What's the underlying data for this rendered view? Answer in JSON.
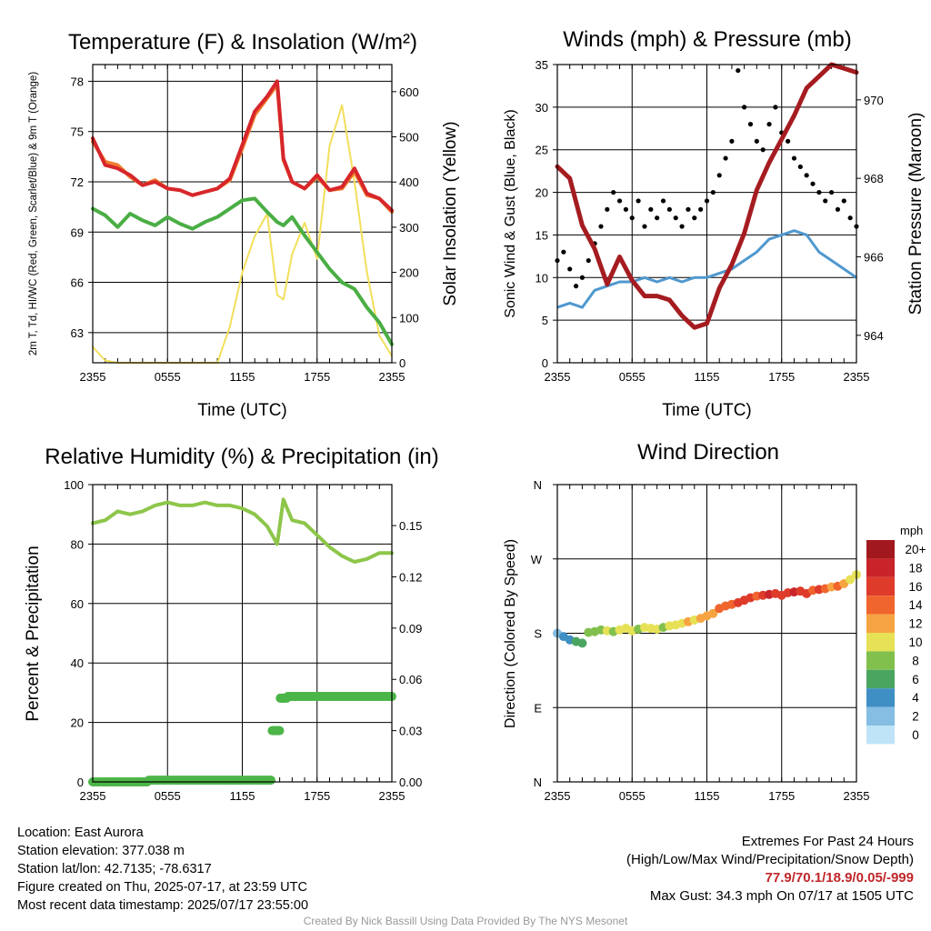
{
  "info": {
    "location": "Location: East Aurora",
    "elevation": "Station elevation: 377.038 m",
    "latlon": "Station lat/lon: 42.7135; -78.6317",
    "created": "Figure created on Thu, 2025-07-17, at 23:59 UTC",
    "recent": "Most recent data timestamp: 2025/07/17 23:55:00"
  },
  "extremes": {
    "title": "Extremes For Past 24 Hours",
    "subtitle": "(High/Low/Max Wind/Precipitation/Snow Depth)",
    "values": "77.9/70.1/18.9/0.05/-999",
    "gust": "Max Gust: 34.3 mph On 07/17 at 1505 UTC"
  },
  "credit": "Created By Nick Bassill Using Data Provided By The NYS Mesonet",
  "colors": {
    "temp": "#d7262b",
    "temp9m": "#f07d2e",
    "dew": "#4aae44",
    "solar": "#f2df5c",
    "gust": "#000000",
    "wind": "#4f98cf",
    "pressure": "#a51c20",
    "rh": "#8dc64a",
    "precip": "#4cb548"
  },
  "chart_data": [
    {
      "type": "line",
      "title": "Temperature (F) & Insolation (W/m²)",
      "xlabel": "Time (UTC)",
      "ylabel": "2m T, Td, HI/WC (Red, Green, Scarlet/Blue) & 9m T (Orange)",
      "y2label": "Solar Insolation (Yellow)",
      "x_ticks": [
        "2355",
        "0555",
        "1155",
        "1755",
        "2355"
      ],
      "ylim": [
        61.2,
        79.0
      ],
      "y_ticks": [
        63,
        66,
        69,
        72,
        75,
        78
      ],
      "y2lim": [
        0,
        660
      ],
      "y2_ticks": [
        0,
        100,
        200,
        300,
        400,
        500,
        600
      ],
      "x_hours": [
        0,
        1,
        2,
        3,
        4,
        5,
        6,
        7,
        8,
        9,
        10,
        11,
        12,
        13,
        14,
        14.8,
        15.3,
        16,
        17,
        18,
        19,
        20,
        21,
        22,
        23,
        24
      ],
      "series": [
        {
          "name": "2m T",
          "axis": "left",
          "color_key": "temp",
          "values": [
            74.6,
            73.0,
            72.8,
            72.4,
            71.8,
            72.0,
            71.6,
            71.5,
            71.2,
            71.4,
            71.6,
            72.2,
            74.2,
            76.2,
            77.1,
            78.0,
            73.4,
            72.0,
            71.6,
            72.4,
            71.5,
            71.7,
            72.8,
            71.3,
            71.0,
            70.3
          ]
        },
        {
          "name": "9m T",
          "axis": "left",
          "color_key": "temp9m",
          "values": [
            74.4,
            73.2,
            73.0,
            72.3,
            71.8,
            72.1,
            71.6,
            71.5,
            71.2,
            71.4,
            71.6,
            72.1,
            74.0,
            76.0,
            77.0,
            77.8,
            73.3,
            72.0,
            71.6,
            72.3,
            71.5,
            71.6,
            72.6,
            71.2,
            71.0,
            70.2
          ]
        },
        {
          "name": "2m Td",
          "axis": "left",
          "color_key": "dew",
          "values": [
            70.4,
            70.0,
            69.3,
            70.1,
            69.7,
            69.4,
            69.9,
            69.5,
            69.2,
            69.6,
            69.9,
            70.4,
            70.9,
            71.0,
            70.2,
            69.6,
            69.4,
            69.9,
            68.8,
            67.8,
            66.8,
            66.0,
            65.6,
            64.5,
            63.6,
            62.3
          ]
        },
        {
          "name": "Solar",
          "axis": "right",
          "color_key": "solar",
          "values": [
            35,
            5,
            0,
            0,
            0,
            0,
            0,
            0,
            0,
            0,
            0,
            80,
            200,
            280,
            330,
            150,
            140,
            240,
            310,
            230,
            480,
            570,
            400,
            200,
            60,
            15
          ]
        }
      ]
    },
    {
      "type": "line",
      "title": "Winds (mph) & Pressure (mb)",
      "xlabel": "Time (UTC)",
      "ylabel": "Sonic Wind & Gust (Blue, Black)",
      "y2label": "Station Pressure (Maroon)",
      "x_ticks": [
        "2355",
        "0555",
        "1155",
        "1755",
        "2355"
      ],
      "ylim": [
        0,
        35
      ],
      "y_ticks": [
        0,
        5,
        10,
        15,
        20,
        25,
        30,
        35
      ],
      "y2lim": [
        963.3,
        970.9
      ],
      "y2_ticks": [
        964,
        966,
        968,
        970
      ],
      "x_hours": [
        0,
        1,
        2,
        3,
        4,
        5,
        6,
        7,
        8,
        9,
        10,
        11,
        12,
        13,
        14,
        15,
        16,
        17,
        18,
        19,
        20,
        21,
        22,
        23,
        24
      ],
      "series": [
        {
          "name": "Sonic Wind",
          "axis": "left",
          "color_key": "wind",
          "values": [
            6.5,
            7,
            6.5,
            8.5,
            9,
            9.5,
            9.5,
            10,
            9.5,
            10,
            9.5,
            10,
            10,
            10.5,
            11,
            12,
            13,
            14.5,
            15,
            15.5,
            15,
            13,
            12,
            11,
            10
          ]
        },
        {
          "name": "Station Pressure",
          "axis": "right",
          "color_key": "pressure",
          "values": [
            968.3,
            968.0,
            966.8,
            966.2,
            965.3,
            966.0,
            965.4,
            965.0,
            965.0,
            964.9,
            964.5,
            964.2,
            964.3,
            965.2,
            965.8,
            966.6,
            967.7,
            968.4,
            969.0,
            969.6,
            970.3,
            970.6,
            970.9,
            970.8,
            970.7
          ]
        }
      ],
      "gust_points": {
        "x_hours": [
          0,
          0.5,
          1,
          1.5,
          2,
          2.5,
          3,
          3.5,
          4,
          4.5,
          5,
          5.5,
          6,
          6.5,
          7,
          7.5,
          8,
          8.5,
          9,
          9.5,
          10,
          10.5,
          11,
          11.5,
          12,
          12.5,
          13,
          13.5,
          14,
          14.5,
          15,
          15.5,
          16,
          16.5,
          17,
          17.5,
          18,
          18.5,
          19,
          19.5,
          20,
          20.5,
          21,
          21.5,
          22,
          22.5,
          23,
          23.5,
          24
        ],
        "values": [
          12,
          13,
          11,
          9,
          10,
          12,
          14,
          16,
          18,
          20,
          19,
          18,
          17,
          19,
          16,
          18,
          17,
          19,
          18,
          17,
          16,
          18,
          17,
          18,
          19,
          20,
          22,
          24,
          26,
          34.3,
          30,
          28,
          26,
          25,
          28,
          30,
          27,
          26,
          24,
          23,
          22,
          21,
          20,
          19,
          20,
          18,
          19,
          17,
          16
        ]
      }
    },
    {
      "type": "line",
      "title": "Relative Humidity (%) & Precipitation (in)",
      "xlabel": "",
      "ylabel": "Percent & Precipitation",
      "x_ticks": [
        "2355",
        "0555",
        "1155",
        "1755",
        "2355"
      ],
      "ylim": [
        0,
        100
      ],
      "y_ticks": [
        0,
        20,
        40,
        60,
        80,
        100
      ],
      "y2lim": [
        0,
        0.174
      ],
      "y2_ticks": [
        "0.00",
        "0.03",
        "0.06",
        "0.09",
        "0.12",
        "0.15"
      ],
      "x_hours": [
        0,
        1,
        2,
        3,
        4,
        5,
        6,
        7,
        8,
        9,
        10,
        11,
        12,
        13,
        14,
        14.8,
        15.3,
        16,
        17,
        18,
        19,
        20,
        21,
        22,
        23,
        24
      ],
      "series": [
        {
          "name": "RH",
          "axis": "left",
          "color_key": "rh",
          "values": [
            87,
            88,
            91,
            90,
            91,
            93,
            94,
            93,
            93,
            94,
            93,
            93,
            92,
            90,
            86,
            80,
            95,
            88,
            87,
            83,
            79,
            76,
            74,
            75,
            77,
            77
          ]
        },
        {
          "name": "Precipitation",
          "axis": "right",
          "color_key": "precip",
          "style": "dots",
          "values": [
            0,
            0,
            0,
            0,
            0,
            0.001,
            0.001,
            0.001,
            0.001,
            0.001,
            0.001,
            0.001,
            0.001,
            0.001,
            0.001,
            0.03,
            0.049,
            0.05,
            0.05,
            0.05,
            0.05,
            0.05,
            0.05,
            0.05,
            0.05,
            0.05
          ]
        }
      ]
    },
    {
      "type": "scatter",
      "title": "Wind Direction",
      "ylabel": "Direction (Colored By Speed)",
      "x_ticks": [
        "2355",
        "0555",
        "1155",
        "1755",
        "2355"
      ],
      "y_categories": [
        "N",
        "E",
        "S",
        "W",
        "N"
      ],
      "ylim": [
        0,
        360
      ],
      "x_hours": [
        0,
        0.5,
        1,
        1.5,
        2,
        2.5,
        3,
        3.5,
        4,
        4.5,
        5,
        5.5,
        6,
        6.5,
        7,
        7.5,
        8,
        8.5,
        9,
        9.5,
        10,
        10.5,
        11,
        11.5,
        12,
        12.5,
        13,
        13.5,
        14,
        14.5,
        15,
        15.5,
        16,
        16.5,
        17,
        17.5,
        18,
        18.5,
        19,
        19.5,
        20,
        20.5,
        21,
        21.5,
        22,
        22.5,
        23,
        23.5,
        24
      ],
      "direction_deg": [
        180,
        176,
        172,
        170,
        168,
        181,
        182,
        184,
        183,
        182,
        184,
        186,
        183,
        185,
        187,
        186,
        185,
        187,
        189,
        190,
        192,
        194,
        196,
        198,
        201,
        204,
        210,
        213,
        215,
        217,
        220,
        223,
        225,
        226,
        227,
        228,
        226,
        229,
        230,
        231,
        228,
        232,
        233,
        234,
        236,
        237,
        240,
        245,
        251
      ],
      "speed_mph": [
        3,
        4,
        5,
        6,
        6,
        8,
        9,
        8,
        10,
        9,
        10,
        11,
        10,
        9,
        10,
        11,
        10,
        9,
        11,
        10,
        11,
        12,
        11,
        12,
        13,
        13,
        14,
        15,
        14,
        16,
        17,
        16,
        15,
        17,
        18,
        17,
        16,
        17,
        18,
        16,
        17,
        15,
        16,
        14,
        13,
        14,
        12,
        11,
        10
      ],
      "legend": {
        "title": "mph",
        "labels": [
          "20+",
          "18",
          "16",
          "14",
          "12",
          "10",
          "8",
          "6",
          "4",
          "2",
          "0"
        ],
        "colors": [
          "#a1191e",
          "#c8242a",
          "#de3b2b",
          "#f0642d",
          "#f6a442",
          "#e6e156",
          "#82c04e",
          "#4aa561",
          "#3f8fc4",
          "#85bde3",
          "#bfe4f7"
        ]
      }
    }
  ]
}
